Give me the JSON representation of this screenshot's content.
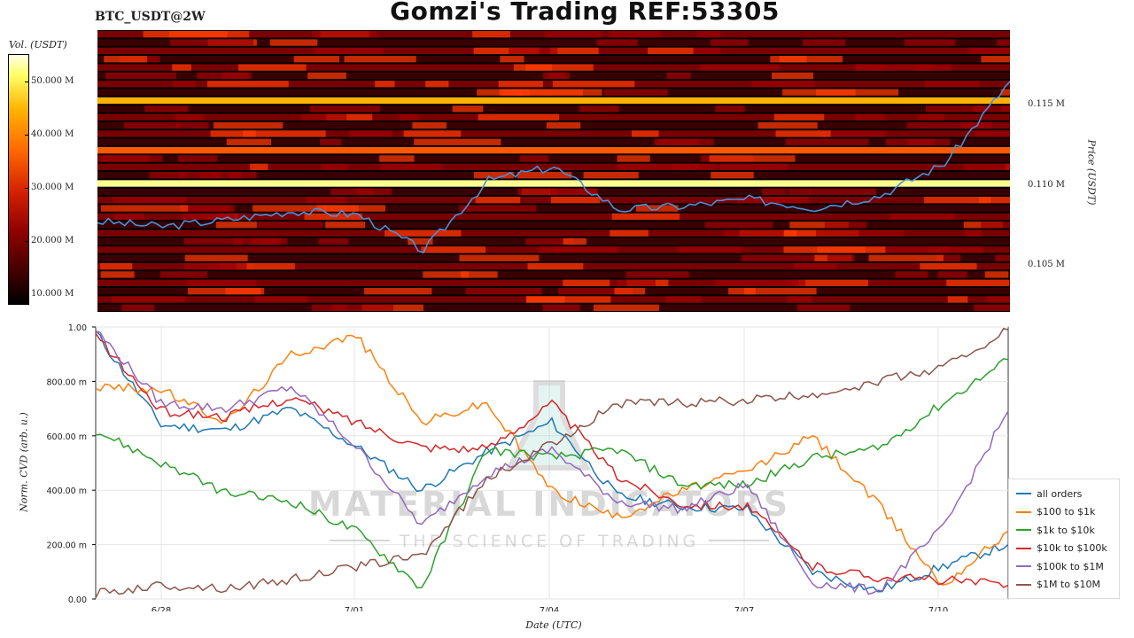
{
  "header": {
    "title": "Gomzi's Trading REF:53305",
    "symbol": "BTC_USDT@2W"
  },
  "heatmap": {
    "colorbar_title": "Vol. (USDT)",
    "colorbar_ticks": [
      "50.000 M",
      "40.000 M",
      "30.000 M",
      "20.000 M",
      "10.000 M"
    ],
    "price_axis_label": "Price (USDT)",
    "price_ticks": [
      "0.115 M",
      "0.110 M",
      "0.105 M"
    ]
  },
  "watermark": {
    "line1": "MATERIAL INDICATORS",
    "line2": "THE SCIENCE OF TRADING"
  },
  "chart_data": [
    {
      "type": "heatmap",
      "title": "BTC_USDT@2W",
      "ylabel": "Price (USDT)",
      "colorbar_label": "Vol. (USDT)",
      "colorbar_range": [
        0,
        55000000
      ],
      "price_range": [
        102500,
        119000
      ],
      "price_line": {
        "name": "price",
        "color": "#4a90d9",
        "x": [
          "6/27",
          "6/28",
          "6/29",
          "6/30",
          "7/01",
          "7/02",
          "7/03",
          "7/04",
          "7/05",
          "7/06",
          "7/07",
          "7/08",
          "7/09",
          "7/10",
          "7/11"
        ],
        "y": [
          107800,
          107500,
          107900,
          108400,
          108200,
          106100,
          110200,
          111000,
          108500,
          108700,
          109100,
          108600,
          109300,
          111200,
          116000
        ]
      },
      "heavy_levels": [
        {
          "price": 115000,
          "volume": 38000000
        },
        {
          "price": 110000,
          "volume": 45000000
        },
        {
          "price": 112000,
          "volume": 25000000
        }
      ]
    },
    {
      "type": "line",
      "xlabel": "Date (UTC)",
      "ylabel": "Norm. CVD (arb. u.)",
      "ylim": [
        0,
        1
      ],
      "x_ticks": [
        "6/28",
        "7/01",
        "7/04",
        "7/07",
        "7/10"
      ],
      "y_ticks": [
        "1.00",
        "800.00 m",
        "600.00 m",
        "400.00 m",
        "200.00 m",
        "0.00"
      ],
      "x": [
        "6/27",
        "6/28",
        "6/29",
        "6/30",
        "7/01",
        "7/02",
        "7/03",
        "7/04",
        "7/05",
        "7/06",
        "7/07",
        "7/08",
        "7/09",
        "7/10",
        "7/11"
      ],
      "series": [
        {
          "name": "all orders",
          "color": "#1f77b4",
          "values": [
            0.98,
            0.64,
            0.62,
            0.7,
            0.56,
            0.4,
            0.54,
            0.65,
            0.38,
            0.34,
            0.33,
            0.1,
            0.03,
            0.12,
            0.2
          ]
        },
        {
          "name": "$100 to $1k",
          "color": "#ff7f0e",
          "values": [
            0.78,
            0.77,
            0.65,
            0.9,
            0.97,
            0.65,
            0.72,
            0.4,
            0.3,
            0.4,
            0.47,
            0.6,
            0.35,
            0.05,
            0.25
          ]
        },
        {
          "name": "$1k to $10k",
          "color": "#2ca02c",
          "values": [
            0.62,
            0.5,
            0.39,
            0.36,
            0.25,
            0.04,
            0.55,
            0.52,
            0.55,
            0.42,
            0.42,
            0.52,
            0.55,
            0.72,
            0.88
          ]
        },
        {
          "name": "$10k to $100k",
          "color": "#d62728",
          "values": [
            0.97,
            0.69,
            0.67,
            0.74,
            0.65,
            0.56,
            0.55,
            0.72,
            0.45,
            0.35,
            0.34,
            0.12,
            0.08,
            0.07,
            0.05
          ]
        },
        {
          "name": "$100k to $1M",
          "color": "#9467bd",
          "values": [
            0.99,
            0.72,
            0.7,
            0.78,
            0.56,
            0.27,
            0.46,
            0.55,
            0.36,
            0.33,
            0.42,
            0.06,
            0.03,
            0.26,
            0.69
          ]
        },
        {
          "name": "$1M to $10M",
          "color": "#8c564b",
          "values": [
            0.02,
            0.05,
            0.04,
            0.07,
            0.12,
            0.16,
            0.44,
            0.57,
            0.72,
            0.72,
            0.73,
            0.75,
            0.8,
            0.85,
            0.99
          ]
        }
      ]
    }
  ]
}
